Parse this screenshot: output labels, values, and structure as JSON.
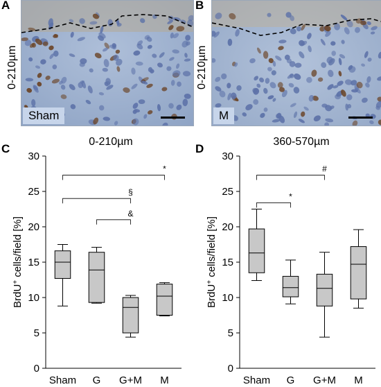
{
  "panels": {
    "A": {
      "letter": "A",
      "side_label": "0-210µm",
      "image_label": "Sham"
    },
    "B": {
      "letter": "B",
      "side_label": "0-210µm",
      "image_label": "M"
    },
    "C": {
      "letter": "C"
    },
    "D": {
      "letter": "D"
    }
  },
  "chart_data": [
    {
      "type": "box",
      "title": "0-210µm",
      "ylabel_main": "BrdU",
      "ylabel_sup": "+",
      "ylabel_rest": " cells/field [%]",
      "ylim": [
        0,
        30
      ],
      "yticks": [
        "0",
        "5",
        "10",
        "15",
        "20",
        "25",
        "30"
      ],
      "categories": [
        "Sham",
        "G",
        "G+M",
        "M"
      ],
      "boxes": [
        {
          "whisker_low": 8.8,
          "q1": 12.7,
          "median": 15.0,
          "q3": 16.6,
          "whisker_high": 17.5
        },
        {
          "whisker_low": 9.2,
          "q1": 9.3,
          "median": 13.9,
          "q3": 16.4,
          "whisker_high": 17.1
        },
        {
          "whisker_low": 4.4,
          "q1": 5.0,
          "median": 8.6,
          "q3": 10.0,
          "whisker_high": 10.3
        },
        {
          "whisker_low": 7.4,
          "q1": 7.5,
          "median": 10.2,
          "q3": 11.9,
          "whisker_high": 12.1
        }
      ],
      "brackets": [
        {
          "from": 0,
          "to": 3,
          "y": 27.3,
          "symbol": "*"
        },
        {
          "from": 0,
          "to": 2,
          "y": 24.0,
          "symbol": "§"
        },
        {
          "from": 1,
          "to": 2,
          "y": 21.0,
          "symbol": "&"
        }
      ]
    },
    {
      "type": "box",
      "title": "360-570µm",
      "ylabel_main": "BrdU",
      "ylabel_sup": "+",
      "ylabel_rest": " cells/field [%]",
      "ylim": [
        0,
        30
      ],
      "yticks": [
        "0",
        "5",
        "10",
        "15",
        "20",
        "25",
        "30"
      ],
      "categories": [
        "Sham",
        "G",
        "G+M",
        "M"
      ],
      "boxes": [
        {
          "whisker_low": 12.4,
          "q1": 13.5,
          "median": 16.3,
          "q3": 19.7,
          "whisker_high": 22.5
        },
        {
          "whisker_low": 9.1,
          "q1": 10.1,
          "median": 11.4,
          "q3": 13.0,
          "whisker_high": 15.3
        },
        {
          "whisker_low": 4.4,
          "q1": 8.8,
          "median": 11.3,
          "q3": 13.3,
          "whisker_high": 16.4
        },
        {
          "whisker_low": 8.5,
          "q1": 9.8,
          "median": 14.7,
          "q3": 17.2,
          "whisker_high": 19.6
        }
      ],
      "brackets": [
        {
          "from": 0,
          "to": 2,
          "y": 27.3,
          "symbol": "#"
        },
        {
          "from": 0,
          "to": 1,
          "y": 23.4,
          "symbol": "*"
        }
      ]
    }
  ]
}
